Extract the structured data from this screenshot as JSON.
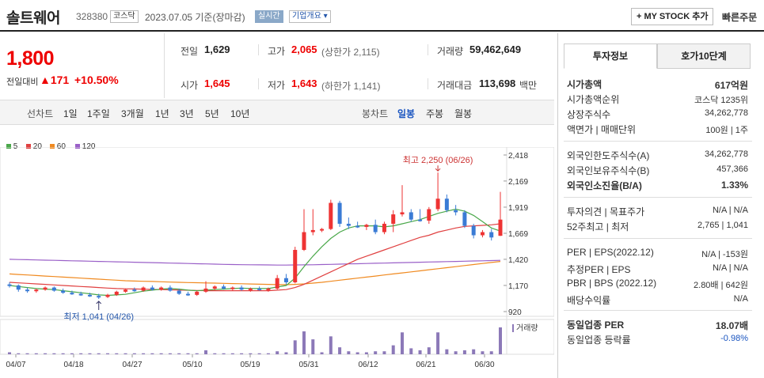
{
  "header": {
    "name": "솔트웨어",
    "code": "328380",
    "market": "코스닥",
    "date": "2023.07.05  기준(장마감)",
    "live": "실시간",
    "company_info": "기업개요",
    "mystock": "MY STOCK 추가",
    "quick_order": "빠른주문"
  },
  "price": {
    "current": "1,800",
    "change_label": "전일대비",
    "change": "171",
    "change_pct": "+10.50%"
  },
  "quote": {
    "prev_label": "전일",
    "prev": "1,629",
    "high_label": "고가",
    "high": "2,065",
    "upper_limit": "(상한가 2,115)",
    "volume_label": "거래량",
    "volume": "59,462,649",
    "open_label": "시가",
    "open": "1,645",
    "low_label": "저가",
    "low": "1,643",
    "lower_limit": "(하한가 1,141)",
    "amount_label": "거래대금",
    "amount": "113,698",
    "amount_unit": "백만"
  },
  "period_tabs": {
    "line_chart": "선차트",
    "items": [
      "1일",
      "1주일",
      "3개월",
      "1년",
      "3년",
      "5년",
      "10년"
    ],
    "candle_chart": "봉차트",
    "candle_items": [
      "일봉",
      "주봉",
      "월봉"
    ],
    "active": "일봉"
  },
  "chart_data": {
    "type": "candlestick",
    "legend": [
      "5",
      "20",
      "60",
      "120"
    ],
    "legend_colors": [
      "#4aa84a",
      "#e04040",
      "#f08a20",
      "#9a60c8"
    ],
    "y_ticks": [
      2418,
      2169,
      1919,
      1669,
      1420,
      1170,
      920
    ],
    "y_tick_labels": [
      "2,418",
      "2,169",
      "1,919",
      "1,669",
      "1,420",
      "1,170",
      "920"
    ],
    "ylim": [
      920,
      2418
    ],
    "x_labels": [
      "04/07",
      "04/18",
      "04/27",
      "05/10",
      "05/19",
      "05/31",
      "06/12",
      "06/21",
      "06/30"
    ],
    "high_annotation": "최고 2,250 (06/26)",
    "low_annotation": "최저 1,041 (04/26)",
    "volume_label": "거래량",
    "candles": [
      [
        1180,
        1200,
        1150,
        1170
      ],
      [
        1170,
        1180,
        1110,
        1130
      ],
      [
        1130,
        1150,
        1100,
        1120
      ],
      [
        1120,
        1140,
        1100,
        1130
      ],
      [
        1130,
        1160,
        1120,
        1150
      ],
      [
        1150,
        1160,
        1110,
        1120
      ],
      [
        1120,
        1140,
        1090,
        1100
      ],
      [
        1100,
        1120,
        1080,
        1090
      ],
      [
        1090,
        1110,
        1070,
        1080
      ],
      [
        1080,
        1100,
        1060,
        1070
      ],
      [
        1070,
        1090,
        1041,
        1060
      ],
      [
        1060,
        1090,
        1050,
        1080
      ],
      [
        1080,
        1120,
        1070,
        1110
      ],
      [
        1110,
        1140,
        1100,
        1130
      ],
      [
        1130,
        1150,
        1110,
        1120
      ],
      [
        1120,
        1160,
        1110,
        1150
      ],
      [
        1150,
        1170,
        1120,
        1130
      ],
      [
        1130,
        1160,
        1120,
        1150
      ],
      [
        1150,
        1170,
        1110,
        1120
      ],
      [
        1120,
        1140,
        1080,
        1090
      ],
      [
        1090,
        1110,
        1070,
        1080
      ],
      [
        1080,
        1120,
        1070,
        1110
      ],
      [
        1110,
        1210,
        1100,
        1140
      ],
      [
        1140,
        1170,
        1120,
        1160
      ],
      [
        1160,
        1180,
        1130,
        1140
      ],
      [
        1140,
        1160,
        1120,
        1150
      ],
      [
        1150,
        1170,
        1120,
        1130
      ],
      [
        1130,
        1150,
        1110,
        1140
      ],
      [
        1140,
        1160,
        1120,
        1130
      ],
      [
        1130,
        1150,
        1110,
        1140
      ],
      [
        1140,
        1270,
        1130,
        1240
      ],
      [
        1240,
        1280,
        1180,
        1200
      ],
      [
        1200,
        1540,
        1190,
        1510
      ],
      [
        1510,
        1900,
        1500,
        1680
      ],
      [
        1680,
        1900,
        1650,
        1700
      ],
      [
        1700,
        1720,
        1680,
        1710
      ],
      [
        1710,
        1990,
        1700,
        1960
      ],
      [
        1960,
        1980,
        1730,
        1760
      ],
      [
        1760,
        1820,
        1710,
        1740
      ],
      [
        1740,
        1780,
        1720,
        1730
      ],
      [
        1730,
        1760,
        1700,
        1750
      ],
      [
        1750,
        1800,
        1660,
        1680
      ],
      [
        1680,
        1780,
        1660,
        1760
      ],
      [
        1760,
        1890,
        1680,
        1850
      ],
      [
        1850,
        2130,
        1830,
        1870
      ],
      [
        1870,
        1900,
        1780,
        1800
      ],
      [
        1800,
        1900,
        1780,
        1790
      ],
      [
        1790,
        1920,
        1760,
        1900
      ],
      [
        1900,
        2250,
        1880,
        2000
      ],
      [
        2000,
        2040,
        1870,
        1890
      ],
      [
        1890,
        1940,
        1840,
        1870
      ],
      [
        1870,
        1890,
        1720,
        1740
      ],
      [
        1740,
        1760,
        1620,
        1650
      ],
      [
        1650,
        1700,
        1630,
        1680
      ],
      [
        1680,
        1710,
        1600,
        1629
      ],
      [
        1645,
        2065,
        1643,
        1800
      ]
    ],
    "volumes": [
      2,
      1,
      1,
      1,
      1,
      1,
      1,
      1,
      1,
      1,
      1,
      1,
      1,
      1,
      1,
      1,
      1,
      1,
      1,
      1,
      1,
      1,
      4,
      1,
      1,
      1,
      1,
      1,
      1,
      1,
      3,
      2,
      14,
      23,
      15,
      2,
      18,
      7,
      3,
      2,
      2,
      3,
      3,
      9,
      22,
      6,
      4,
      7,
      22,
      5,
      3,
      4,
      5,
      3,
      3,
      27
    ],
    "ma5": [
      1170,
      1160,
      1150,
      1140,
      1135,
      1130,
      1120,
      1110,
      1100,
      1090,
      1080,
      1075,
      1080,
      1085,
      1100,
      1115,
      1125,
      1135,
      1140,
      1135,
      1125,
      1120,
      1125,
      1130,
      1135,
      1140,
      1145,
      1140,
      1140,
      1140,
      1155,
      1170,
      1240,
      1350,
      1450,
      1540,
      1620,
      1680,
      1720,
      1740,
      1740,
      1740,
      1730,
      1740,
      1760,
      1780,
      1800,
      1830,
      1860,
      1880,
      1900,
      1880,
      1840,
      1780,
      1720,
      1690
    ],
    "ma20": [
      1200,
      1195,
      1190,
      1185,
      1180,
      1175,
      1170,
      1165,
      1160,
      1155,
      1150,
      1145,
      1140,
      1138,
      1136,
      1134,
      1132,
      1130,
      1128,
      1126,
      1124,
      1122,
      1120,
      1120,
      1120,
      1120,
      1120,
      1120,
      1120,
      1120,
      1125,
      1130,
      1150,
      1180,
      1220,
      1260,
      1300,
      1340,
      1380,
      1420,
      1450,
      1480,
      1510,
      1540,
      1570,
      1600,
      1630,
      1650,
      1680,
      1700,
      1720,
      1735,
      1740,
      1745,
      1750,
      1760
    ],
    "ma60": [
      1280,
      1275,
      1270,
      1265,
      1260,
      1255,
      1250,
      1245,
      1240,
      1235,
      1230,
      1225,
      1220,
      1215,
      1212,
      1210,
      1208,
      1205,
      1202,
      1200,
      1198,
      1196,
      1194,
      1192,
      1190,
      1188,
      1186,
      1184,
      1182,
      1180,
      1178,
      1177,
      1180,
      1185,
      1192,
      1200,
      1210,
      1220,
      1230,
      1240,
      1250,
      1260,
      1270,
      1280,
      1290,
      1300,
      1310,
      1320,
      1330,
      1340,
      1350,
      1360,
      1370,
      1380,
      1390,
      1400
    ],
    "ma120": [
      1420,
      1418,
      1416,
      1414,
      1412,
      1410,
      1408,
      1406,
      1404,
      1402,
      1400,
      1398,
      1396,
      1394,
      1392,
      1390,
      1388,
      1386,
      1384,
      1382,
      1380,
      1378,
      1376,
      1374,
      1372,
      1370,
      1369,
      1368,
      1367,
      1366,
      1365,
      1365,
      1366,
      1367,
      1368,
      1370,
      1372,
      1374,
      1376,
      1378,
      1380,
      1382,
      1384,
      1386,
      1388,
      1390,
      1392,
      1394,
      1396,
      1398,
      1400,
      1402,
      1404,
      1406,
      1408,
      1410
    ]
  },
  "right_panel": {
    "tab_active": "투자정보",
    "tab_other": "호가10단계",
    "rows1": [
      {
        "label": "시가총액",
        "value": "617억원",
        "bold": true
      },
      {
        "label": "시가총액순위",
        "value": "코스닥 1235위"
      },
      {
        "label": "상장주식수",
        "value": "34,262,778"
      },
      {
        "label": "액면가 | 매매단위",
        "value": "100원 | 1주"
      }
    ],
    "rows2": [
      {
        "label": "외국인한도주식수(A)",
        "value": "34,262,778"
      },
      {
        "label": "외국인보유주식수(B)",
        "value": "457,366"
      },
      {
        "label": "외국인소진율(B/A)",
        "value": "1.33%",
        "bold": true
      }
    ],
    "rows3": [
      {
        "label": "투자의견 | 목표주가",
        "value": "N/A | N/A"
      },
      {
        "label": "52주최고 | 최저",
        "value": "2,765 | 1,041"
      }
    ],
    "rows4": [
      {
        "label": "PER | EPS(2022.12)",
        "value": "N/A | -153원"
      },
      {
        "label": "추정PER | EPS",
        "value": "N/A | N/A"
      },
      {
        "label": "PBR | BPS (2022.12)",
        "value": "2.80배 | 642원"
      },
      {
        "label": "배당수익률",
        "value": "N/A"
      }
    ],
    "rows5": [
      {
        "label": "동일업종 PER",
        "value": "18.07배",
        "bold": true
      },
      {
        "label": "동일업종 등락률",
        "value": "-0.98%",
        "blue": true
      }
    ]
  }
}
